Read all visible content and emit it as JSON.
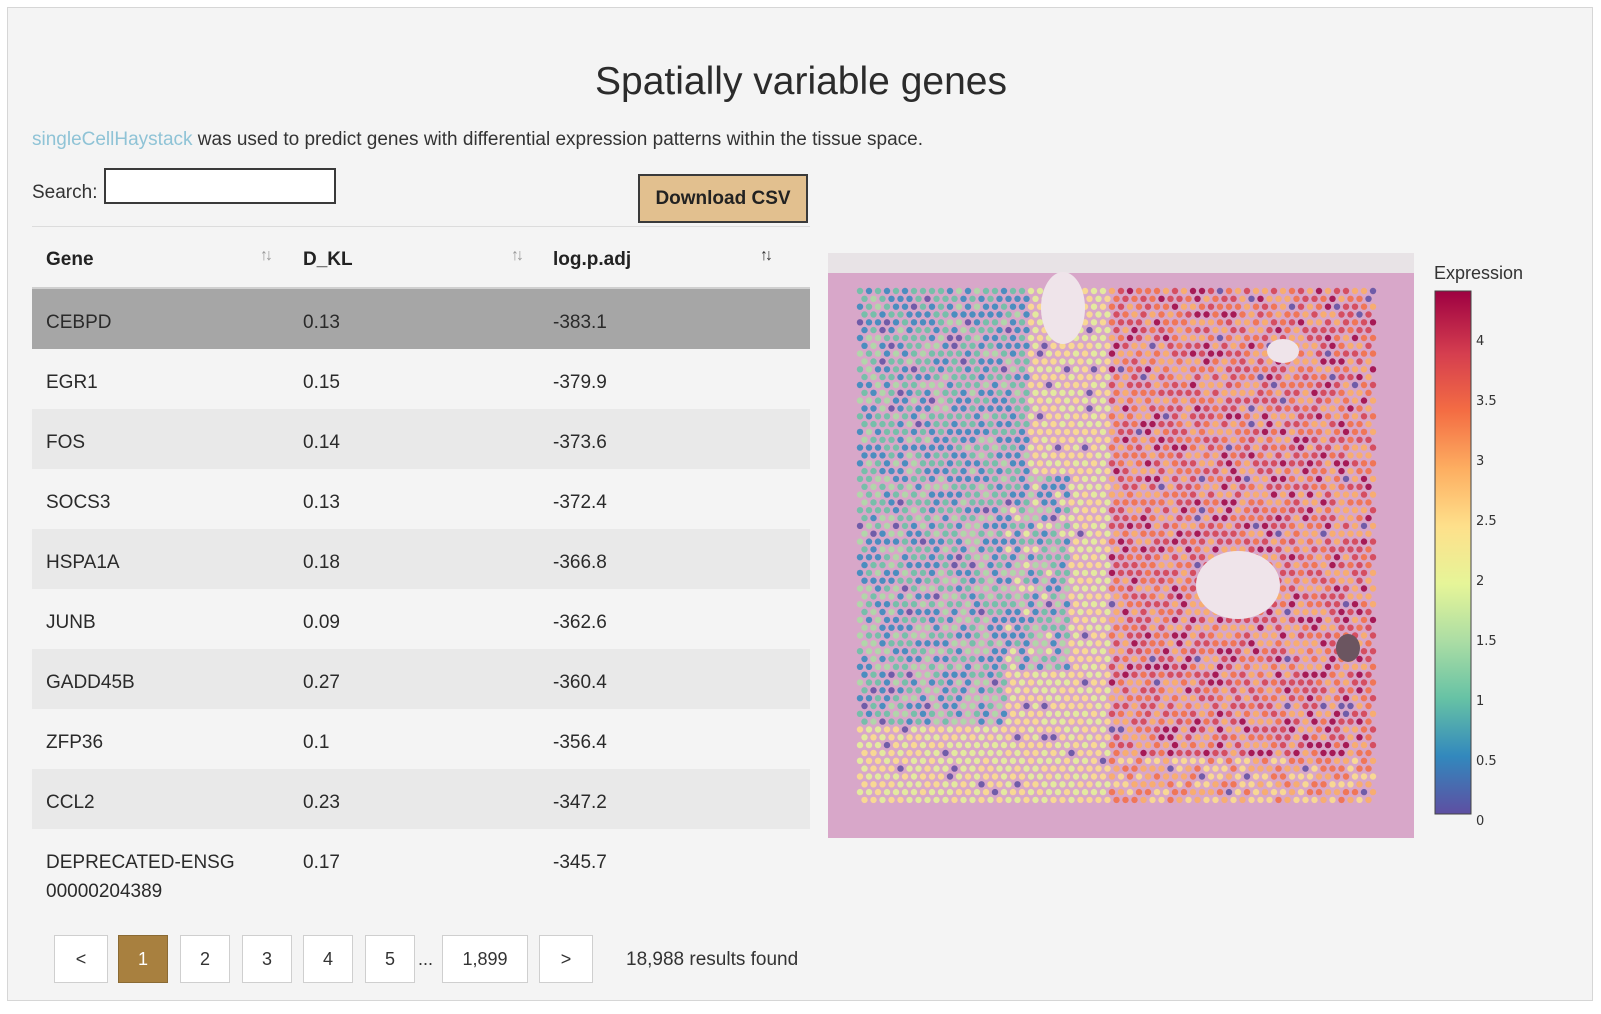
{
  "header": {
    "title": "Spatially variable genes",
    "description_link": "singleCellHaystack",
    "description_rest": " was used to predict genes with differential expression patterns within the tissue space."
  },
  "search": {
    "label": "Search:",
    "value": "",
    "placeholder": ""
  },
  "download_label": "Download CSV",
  "table": {
    "columns": [
      "Gene",
      "D_KL",
      "log.p.adj"
    ],
    "sort_icon": "↑↓",
    "rows": [
      {
        "gene": "CEBPD",
        "dkl": "0.13",
        "logp": "-383.1"
      },
      {
        "gene": "EGR1",
        "dkl": "0.15",
        "logp": "-379.9"
      },
      {
        "gene": "FOS",
        "dkl": "0.14",
        "logp": "-373.6"
      },
      {
        "gene": "SOCS3",
        "dkl": "0.13",
        "logp": "-372.4"
      },
      {
        "gene": "HSPA1A",
        "dkl": "0.18",
        "logp": "-366.8"
      },
      {
        "gene": "JUNB",
        "dkl": "0.09",
        "logp": "-362.6"
      },
      {
        "gene": "GADD45B",
        "dkl": "0.27",
        "logp": "-360.4"
      },
      {
        "gene": "ZFP36",
        "dkl": "0.1",
        "logp": "-356.4"
      },
      {
        "gene": "CCL2",
        "dkl": "0.23",
        "logp": "-347.2"
      },
      {
        "gene": "DEPRECATED-ENSG00000204389",
        "dkl": "0.17",
        "logp": "-345.7"
      }
    ]
  },
  "pagination": {
    "prev": "<",
    "pages": [
      "1",
      "2",
      "3",
      "4",
      "5"
    ],
    "ellipsis": "...",
    "last": "1,899",
    "next": ">",
    "current": "1",
    "results_text": "18,988 results found"
  },
  "plot": {
    "colorbar_title": "Expression",
    "colorbar_ticks": [
      "4",
      "3.5",
      "3",
      "2.5",
      "2",
      "1.5",
      "1",
      "0.5",
      "0"
    ],
    "colors": {
      "tissue_background": "#d8a7c9",
      "spot_low": "#5e4fa2",
      "spot_high": "#9e0142",
      "selected_row": "#a6a6a6",
      "active_page": "#a8803f",
      "download_button": "#e2c08f",
      "link": "#8fc3d6"
    }
  }
}
